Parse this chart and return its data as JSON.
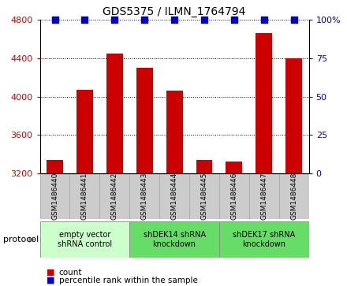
{
  "title": "GDS5375 / ILMN_1764794",
  "samples": [
    "GSM1486440",
    "GSM1486441",
    "GSM1486442",
    "GSM1486443",
    "GSM1486444",
    "GSM1486445",
    "GSM1486446",
    "GSM1486447",
    "GSM1486448"
  ],
  "counts": [
    3340,
    4070,
    4450,
    4300,
    4060,
    3340,
    3320,
    4660,
    4400
  ],
  "bar_color": "#cc0000",
  "dot_color": "#0000cc",
  "ylim_left": [
    3200,
    4800
  ],
  "ylim_right": [
    0,
    100
  ],
  "yticks_left": [
    3200,
    3600,
    4000,
    4400,
    4800
  ],
  "yticks_right": [
    0,
    25,
    50,
    75,
    100
  ],
  "ylabel_left_color": "#cc0000",
  "ylabel_right_color": "#0000cc",
  "groups": [
    {
      "label": "empty vector\nshRNA control",
      "start": 0,
      "end": 3,
      "color": "#ccffcc"
    },
    {
      "label": "shDEK14 shRNA\nknockdown",
      "start": 3,
      "end": 6,
      "color": "#66dd66"
    },
    {
      "label": "shDEK17 shRNA\nknockdown",
      "start": 6,
      "end": 9,
      "color": "#66dd66"
    }
  ],
  "protocol_label": "protocol",
  "legend_count_label": "count",
  "legend_percentile_label": "percentile rank within the sample",
  "background_color": "#ffffff",
  "tick_area_color": "#cccccc",
  "bar_width": 0.55,
  "dot_size": 35
}
